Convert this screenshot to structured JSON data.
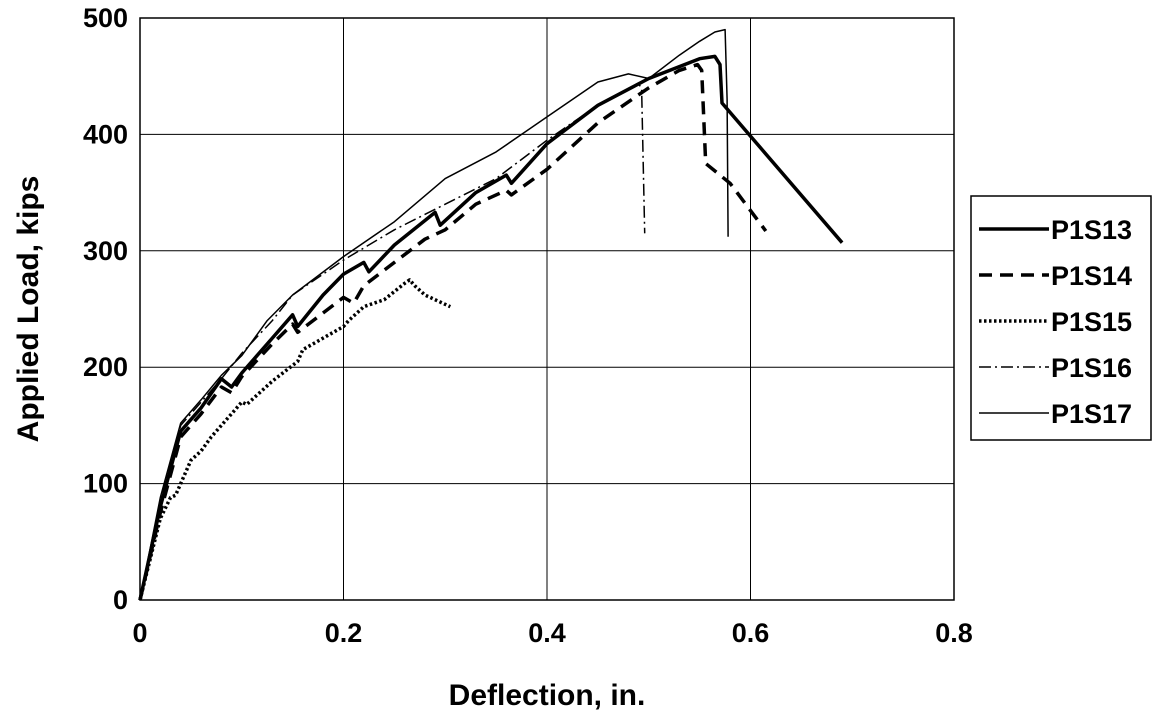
{
  "chart_data": {
    "type": "line",
    "title": "",
    "xlabel": "Deflection, in.",
    "ylabel": "Applied Load, kips",
    "xlim": [
      0,
      0.8
    ],
    "ylim": [
      0,
      500
    ],
    "xticks": [
      {
        "value": 0,
        "label": "0"
      },
      {
        "value": 0.2,
        "label": "0.2"
      },
      {
        "value": 0.4,
        "label": "0.4"
      },
      {
        "value": 0.6,
        "label": "0.6"
      },
      {
        "value": 0.8,
        "label": "0.8"
      }
    ],
    "yticks": [
      {
        "value": 0,
        "label": "0"
      },
      {
        "value": 100,
        "label": "100"
      },
      {
        "value": 200,
        "label": "200"
      },
      {
        "value": 300,
        "label": "300"
      },
      {
        "value": 400,
        "label": "400"
      },
      {
        "value": 500,
        "label": "500"
      }
    ],
    "grid": true,
    "legend_position": "right",
    "series": [
      {
        "name": "P1S13",
        "style": "solid-thick",
        "color": "#000000",
        "points": [
          [
            0,
            0
          ],
          [
            0.02,
            80
          ],
          [
            0.04,
            145
          ],
          [
            0.06,
            165
          ],
          [
            0.08,
            190
          ],
          [
            0.09,
            183
          ],
          [
            0.1,
            195
          ],
          [
            0.13,
            225
          ],
          [
            0.15,
            245
          ],
          [
            0.155,
            235
          ],
          [
            0.18,
            262
          ],
          [
            0.2,
            280
          ],
          [
            0.22,
            290
          ],
          [
            0.225,
            282
          ],
          [
            0.25,
            305
          ],
          [
            0.29,
            333
          ],
          [
            0.295,
            322
          ],
          [
            0.33,
            350
          ],
          [
            0.36,
            365
          ],
          [
            0.365,
            358
          ],
          [
            0.4,
            392
          ],
          [
            0.45,
            425
          ],
          [
            0.5,
            448
          ],
          [
            0.55,
            465
          ],
          [
            0.565,
            467
          ],
          [
            0.57,
            460
          ],
          [
            0.572,
            427
          ],
          [
            0.69,
            307
          ]
        ]
      },
      {
        "name": "P1S14",
        "style": "dashed",
        "color": "#000000",
        "points": [
          [
            0,
            0
          ],
          [
            0.02,
            75
          ],
          [
            0.04,
            140
          ],
          [
            0.06,
            160
          ],
          [
            0.08,
            183
          ],
          [
            0.09,
            178
          ],
          [
            0.1,
            192
          ],
          [
            0.13,
            220
          ],
          [
            0.15,
            237
          ],
          [
            0.155,
            230
          ],
          [
            0.2,
            260
          ],
          [
            0.21,
            255
          ],
          [
            0.22,
            270
          ],
          [
            0.28,
            310
          ],
          [
            0.3,
            318
          ],
          [
            0.33,
            340
          ],
          [
            0.36,
            352
          ],
          [
            0.365,
            348
          ],
          [
            0.4,
            370
          ],
          [
            0.45,
            410
          ],
          [
            0.5,
            440
          ],
          [
            0.53,
            455
          ],
          [
            0.548,
            460
          ],
          [
            0.552,
            455
          ],
          [
            0.556,
            375
          ],
          [
            0.58,
            358
          ],
          [
            0.615,
            317
          ]
        ]
      },
      {
        "name": "P1S15",
        "style": "dotted",
        "color": "#000000",
        "points": [
          [
            0,
            0
          ],
          [
            0.02,
            70
          ],
          [
            0.03,
            88
          ],
          [
            0.035,
            90
          ],
          [
            0.05,
            120
          ],
          [
            0.06,
            128
          ],
          [
            0.07,
            140
          ],
          [
            0.1,
            170
          ],
          [
            0.105,
            168
          ],
          [
            0.13,
            188
          ],
          [
            0.155,
            205
          ],
          [
            0.16,
            215
          ],
          [
            0.2,
            235
          ],
          [
            0.205,
            240
          ],
          [
            0.22,
            252
          ],
          [
            0.24,
            258
          ],
          [
            0.26,
            272
          ],
          [
            0.265,
            275
          ],
          [
            0.27,
            270
          ],
          [
            0.28,
            262
          ],
          [
            0.305,
            252
          ]
        ]
      },
      {
        "name": "P1S16",
        "style": "dash-dot",
        "color": "#000000",
        "points": [
          [
            0,
            0
          ],
          [
            0.02,
            85
          ],
          [
            0.04,
            150
          ],
          [
            0.06,
            170
          ],
          [
            0.08,
            190
          ],
          [
            0.1,
            212
          ],
          [
            0.13,
            240
          ],
          [
            0.15,
            262
          ],
          [
            0.2,
            292
          ],
          [
            0.25,
            318
          ],
          [
            0.3,
            340
          ],
          [
            0.35,
            362
          ],
          [
            0.4,
            395
          ],
          [
            0.45,
            425
          ],
          [
            0.49,
            443
          ],
          [
            0.493,
            440
          ],
          [
            0.496,
            315
          ]
        ]
      },
      {
        "name": "P1S17",
        "style": "solid-thin",
        "color": "#000000",
        "points": [
          [
            0,
            0
          ],
          [
            0.02,
            88
          ],
          [
            0.04,
            152
          ],
          [
            0.06,
            172
          ],
          [
            0.08,
            193
          ],
          [
            0.1,
            210
          ],
          [
            0.125,
            240
          ],
          [
            0.15,
            262
          ],
          [
            0.2,
            295
          ],
          [
            0.25,
            325
          ],
          [
            0.3,
            362
          ],
          [
            0.35,
            385
          ],
          [
            0.4,
            415
          ],
          [
            0.45,
            445
          ],
          [
            0.48,
            452
          ],
          [
            0.5,
            448
          ],
          [
            0.53,
            468
          ],
          [
            0.55,
            480
          ],
          [
            0.565,
            488
          ],
          [
            0.575,
            490
          ],
          [
            0.577,
            430
          ],
          [
            0.578,
            312
          ]
        ]
      }
    ]
  }
}
